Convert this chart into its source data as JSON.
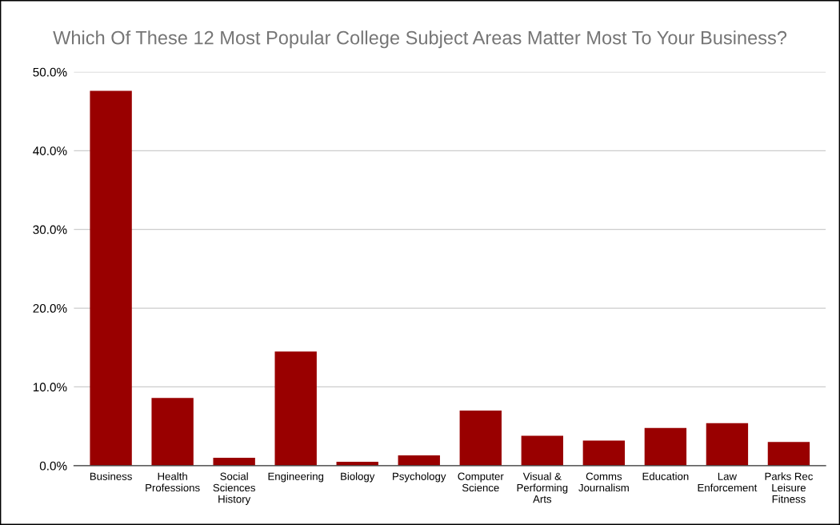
{
  "chart_data": {
    "type": "bar",
    "title": "Which Of These 12 Most Popular College Subject Areas Matter Most To Your Business?",
    "categories": [
      "Business",
      "Health\nProfessions",
      "Social\nSciences\nHistory",
      "Engineering",
      "Biology",
      "Psychology",
      "Computer\nScience",
      "Visual &\nPerforming\nArts",
      "Comms\nJournalism",
      "Education",
      "Law\nEnforcement",
      "Parks Rec\nLeisure\nFitness"
    ],
    "values": [
      47.6,
      8.6,
      1.0,
      14.5,
      0.5,
      1.3,
      7.0,
      3.8,
      3.2,
      4.8,
      5.4,
      3.0
    ],
    "color": "#990000",
    "ylim": [
      0,
      50
    ],
    "yticks": [
      {
        "value": 0,
        "label": "0.0%"
      },
      {
        "value": 10,
        "label": "10.0%"
      },
      {
        "value": 20,
        "label": "20.0%"
      },
      {
        "value": 30,
        "label": "30.0%"
      },
      {
        "value": 40,
        "label": "40.0%"
      },
      {
        "value": 50,
        "label": "50.0%"
      }
    ],
    "grid": "y"
  }
}
